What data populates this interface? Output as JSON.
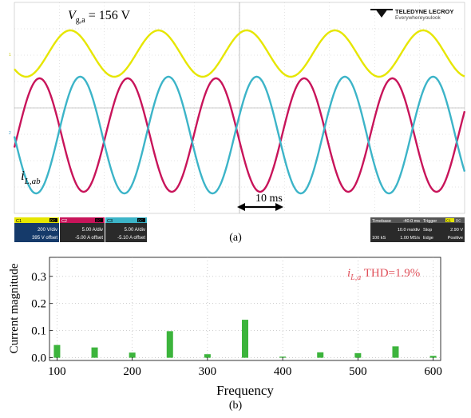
{
  "chart_data": [
    {
      "type": "line",
      "caption": "(a)",
      "annotations": {
        "voltage_symbol": "V",
        "voltage_subscript": "g,a",
        "voltage_value": "= 156 V",
        "current_symbol": "i",
        "current_subscript": "L,ab",
        "time_span_label": "10 ms"
      },
      "brand": {
        "name": "TELEDYNE LECROY",
        "tagline": "Everywhereyoulook"
      },
      "channels": [
        {
          "id": "C1",
          "coupling": "DC",
          "scale": "200 V/div",
          "offset": "395 V offset",
          "color": "#e6e600"
        },
        {
          "id": "C2",
          "coupling": "DC",
          "scale": "5.00 A/div",
          "offset": "-5.00 A offset",
          "color": "#c8145a"
        },
        {
          "id": "C3",
          "coupling": "DC",
          "scale": "5.00 A/div",
          "offset": "-5.10 A offset",
          "color": "#3cb4c8"
        }
      ],
      "timebase": {
        "label": "Timebase",
        "delay": "-40.0 ms",
        "per_div": "10.0 ms/div",
        "samples": "100 kS",
        "rate": "1.00 MS/s"
      },
      "trigger": {
        "label": "Trigger",
        "channel": "C1",
        "coupling": "DC",
        "mode": "Stop",
        "level": "2.90 V",
        "type": "Edge",
        "slope": "Positive"
      },
      "left_markers": [
        "1",
        "2"
      ]
    },
    {
      "type": "bar",
      "caption": "(b)",
      "xlabel": "Frequency",
      "ylabel": "Current magnitude",
      "annotation_symbol": "i",
      "annotation_subscript": "L,a",
      "annotation_text": " THD=1.9%",
      "x": [
        100,
        150,
        200,
        250,
        300,
        350,
        400,
        450,
        500,
        550,
        600
      ],
      "values": [
        0.047,
        0.038,
        0.019,
        0.098,
        0.013,
        0.14,
        0.004,
        0.02,
        0.017,
        0.042,
        0.007
      ],
      "xlim": [
        90,
        610
      ],
      "ylim": [
        -0.01,
        0.37
      ],
      "xticks": [
        100,
        200,
        300,
        400,
        500,
        600
      ],
      "yticks": [
        0.0,
        0.1,
        0.2,
        0.3
      ],
      "ytick_labels": [
        "0.0",
        "0.1",
        "0.2",
        "0.3"
      ],
      "bar_color": "#3cb43c",
      "annotation_color": "#e0505a",
      "grid": true
    }
  ]
}
